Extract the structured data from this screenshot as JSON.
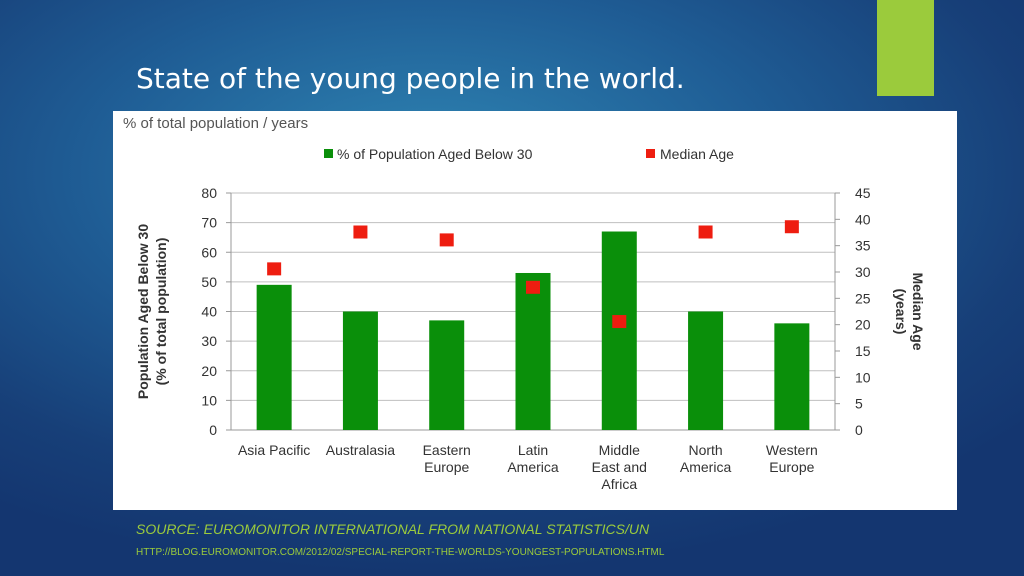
{
  "slide": {
    "title": "State of the young people in the world.",
    "accent_color": "#9bcb3c",
    "source": "SOURCE: EUROMONITOR INTERNATIONAL FROM NATIONAL STATISTICS/UN",
    "url": "HTTP://BLOG.EUROMONITOR.COM/2012/02/SPECIAL-REPORT-THE-WORLDS-YOUNGEST-POPULATIONS.HTML"
  },
  "chart_data": {
    "type": "bar",
    "title": "% of total population / years",
    "categories": [
      [
        "Asia Pacific"
      ],
      [
        "Australasia"
      ],
      [
        "Eastern",
        "Europe"
      ],
      [
        "Latin",
        "America"
      ],
      [
        "Middle",
        "East and",
        "Africa"
      ],
      [
        "North",
        "America"
      ],
      [
        "Western",
        "Europe"
      ]
    ],
    "series": [
      {
        "name": "% of Population Aged Below 30",
        "type": "bar",
        "axis": "left",
        "color": "#0a8f0a",
        "values": [
          49,
          40,
          37,
          53,
          67,
          40,
          36
        ]
      },
      {
        "name": "Median Age",
        "type": "scatter",
        "axis": "right",
        "color": "#ee1d10",
        "values": [
          30.5,
          37.5,
          36,
          27,
          20.5,
          37.5,
          38.5
        ]
      }
    ],
    "ylabel_left": [
      "Population Aged Below 30",
      "(% of total population)"
    ],
    "ylabel_right": [
      "Median Age",
      "(years)"
    ],
    "ylim_left": [
      0,
      80
    ],
    "yticks_left": [
      0,
      10,
      20,
      30,
      40,
      50,
      60,
      70,
      80
    ],
    "ylim_right": [
      0,
      45
    ],
    "yticks_right": [
      0,
      5,
      10,
      15,
      20,
      25,
      30,
      35,
      40,
      45
    ],
    "grid": true,
    "legend_position": "top"
  }
}
